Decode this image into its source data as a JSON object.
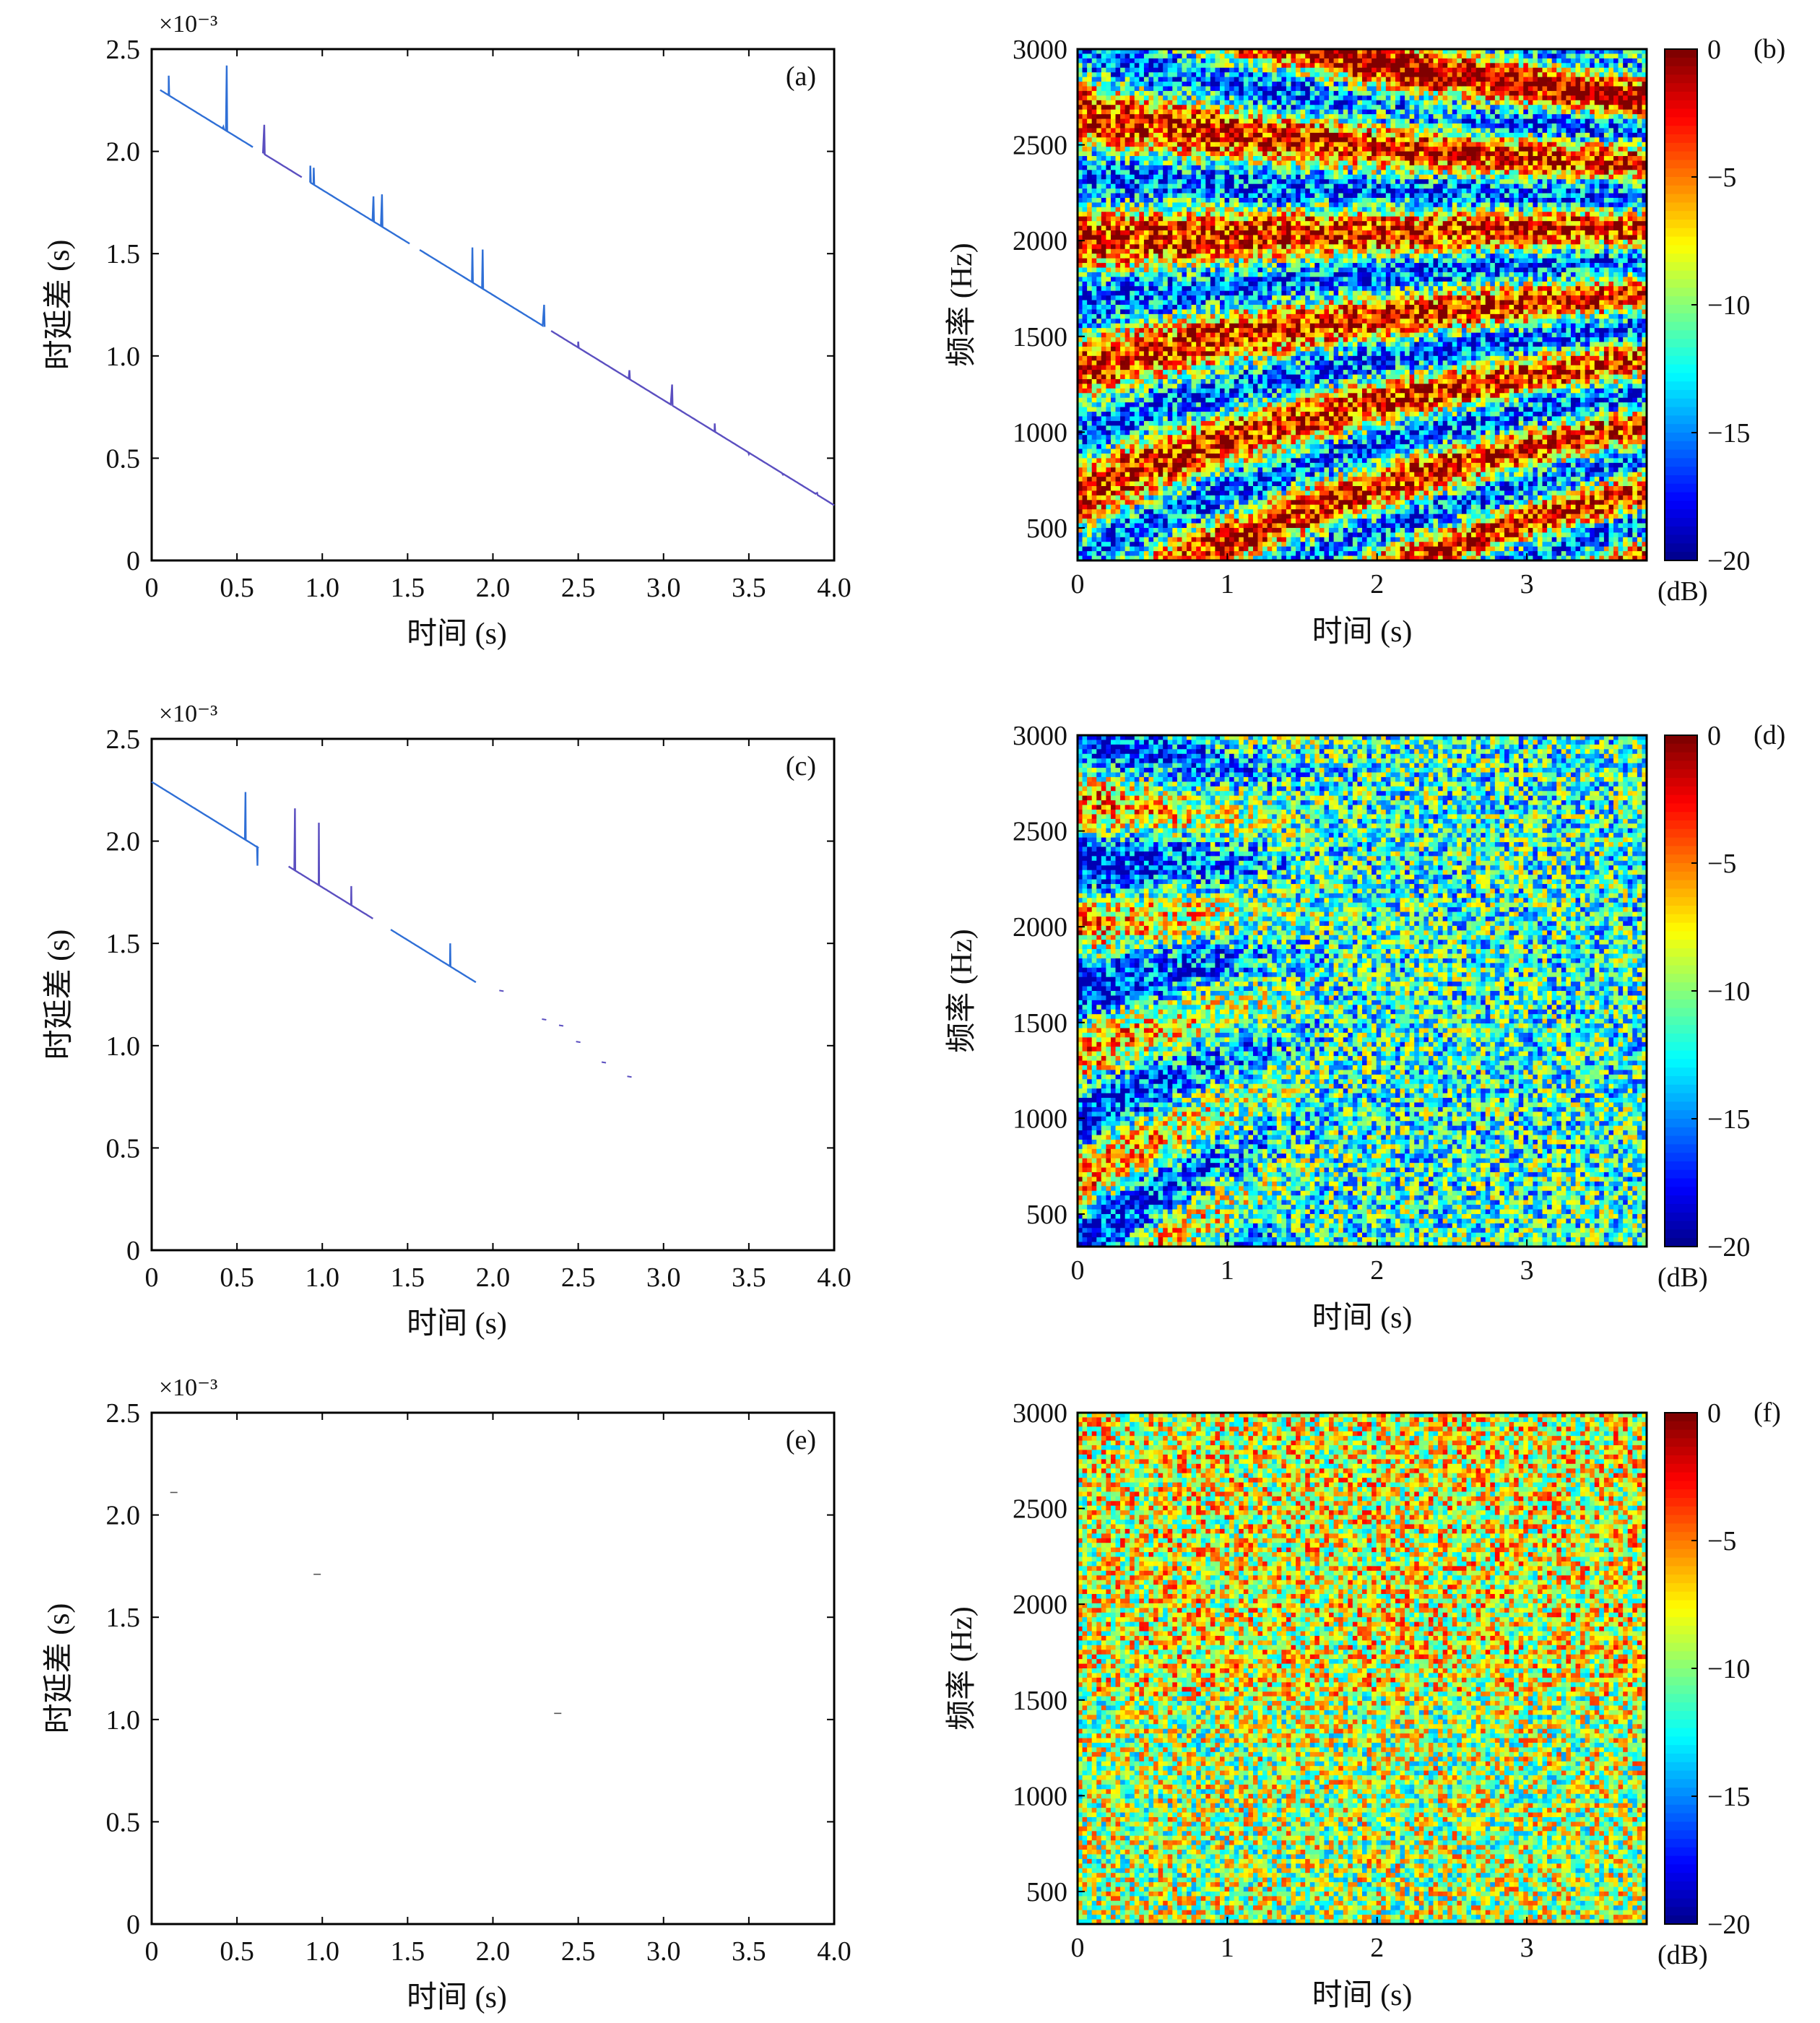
{
  "figure": {
    "colors": {
      "axis": "#000000",
      "line": "#2f6fd6",
      "line_alt": "#5b4fc0",
      "background": "#ffffff"
    }
  },
  "chart_data": [
    {
      "id": "a",
      "panel_label": "(a)",
      "type": "line",
      "xlabel": "时间 (s)",
      "ylabel": "时延差 (s)",
      "exponent": "×10⁻³",
      "xlim": [
        0,
        4.0
      ],
      "ylim": [
        0,
        2.5
      ],
      "xticks": [
        "0",
        "0.5",
        "1.0",
        "1.5",
        "2.0",
        "2.5",
        "3.0",
        "3.5",
        "4.0"
      ],
      "yticks": [
        "0",
        "0.5",
        "1.0",
        "1.5",
        "2.0",
        "2.5"
      ],
      "trend": {
        "x": [
          0.05,
          4.0
        ],
        "y": [
          2.3,
          0.27
        ]
      },
      "spikes": [
        {
          "x": 0.1,
          "y": 2.37
        },
        {
          "x": 0.42,
          "y": 2.12
        },
        {
          "x": 0.44,
          "y": 2.42
        },
        {
          "x": 0.66,
          "y": 2.13
        },
        {
          "x": 0.93,
          "y": 1.93
        },
        {
          "x": 0.95,
          "y": 1.92
        },
        {
          "x": 1.3,
          "y": 1.78
        },
        {
          "x": 1.35,
          "y": 1.79
        },
        {
          "x": 1.56,
          "y": 1.75
        },
        {
          "x": 1.88,
          "y": 1.53
        },
        {
          "x": 1.94,
          "y": 1.52
        },
        {
          "x": 2.3,
          "y": 1.25
        },
        {
          "x": 2.5,
          "y": 1.07
        },
        {
          "x": 2.8,
          "y": 0.93
        },
        {
          "x": 3.05,
          "y": 0.86
        },
        {
          "x": 3.3,
          "y": 0.67
        },
        {
          "x": 3.5,
          "y": 0.52
        },
        {
          "x": 3.7,
          "y": 0.42
        },
        {
          "x": 3.9,
          "y": 0.33
        }
      ],
      "gaps": [
        [
          0.6,
          0.65
        ],
        [
          0.88,
          0.92
        ],
        [
          1.52,
          1.57
        ],
        [
          2.3,
          2.34
        ]
      ]
    },
    {
      "id": "b",
      "panel_label": "(b)",
      "type": "heatmap",
      "xlabel": "时间 (s)",
      "ylabel": "频率 (Hz)",
      "xlim": [
        0,
        3.8
      ],
      "ylim": [
        330,
        3000
      ],
      "xticks": [
        "0",
        "1",
        "2",
        "3"
      ],
      "yticks": [
        "500",
        "1000",
        "1500",
        "2000",
        "2500",
        "3000"
      ],
      "colorbar": {
        "ticks": [
          "0",
          "−5",
          "−10",
          "−15",
          "−20"
        ],
        "unit": "(dB)",
        "range": [
          -20,
          0
        ]
      },
      "pattern": "striations-strong"
    },
    {
      "id": "c",
      "panel_label": "(c)",
      "type": "line",
      "xlabel": "时间 (s)",
      "ylabel": "时延差 (s)",
      "exponent": "×10⁻³",
      "xlim": [
        0,
        4.0
      ],
      "ylim": [
        0,
        2.5
      ],
      "xticks": [
        "0",
        "0.5",
        "1.0",
        "1.5",
        "2.0",
        "2.5",
        "3.0",
        "3.5",
        "4.0"
      ],
      "yticks": [
        "0",
        "0.5",
        "1.0",
        "1.5",
        "2.0",
        "2.5"
      ],
      "trend": {
        "x": [
          0.0,
          1.9
        ],
        "y": [
          2.29,
          1.31
        ]
      },
      "spikes": [
        {
          "x": 0.55,
          "y": 2.24
        },
        {
          "x": 0.62,
          "y": 1.88
        },
        {
          "x": 0.84,
          "y": 2.16
        },
        {
          "x": 0.98,
          "y": 2.09
        },
        {
          "x": 1.17,
          "y": 1.78
        },
        {
          "x": 1.75,
          "y": 1.5
        }
      ],
      "gaps": [
        [
          0.63,
          0.8
        ],
        [
          1.3,
          1.4
        ]
      ],
      "dots": [
        {
          "x": 2.05,
          "y": 1.27
        },
        {
          "x": 2.3,
          "y": 1.13
        },
        {
          "x": 2.4,
          "y": 1.1
        },
        {
          "x": 2.5,
          "y": 1.02
        },
        {
          "x": 2.65,
          "y": 0.92
        },
        {
          "x": 2.8,
          "y": 0.85
        }
      ]
    },
    {
      "id": "d",
      "panel_label": "(d)",
      "type": "heatmap",
      "xlabel": "时间 (s)",
      "ylabel": "频率 (Hz)",
      "xlim": [
        0,
        3.8
      ],
      "ylim": [
        330,
        3000
      ],
      "xticks": [
        "0",
        "1",
        "2",
        "3"
      ],
      "yticks": [
        "500",
        "1000",
        "1500",
        "2000",
        "2500",
        "3000"
      ],
      "colorbar": {
        "ticks": [
          "0",
          "−5",
          "−10",
          "−15",
          "−20"
        ],
        "unit": "(dB)",
        "range": [
          -20,
          0
        ]
      },
      "pattern": "striations-weak"
    },
    {
      "id": "e",
      "panel_label": "(e)",
      "type": "line",
      "xlabel": "时间 (s)",
      "ylabel": "时延差 (s)",
      "exponent": "×10⁻³",
      "xlim": [
        0,
        4.0
      ],
      "ylim": [
        0,
        2.5
      ],
      "xticks": [
        "0",
        "0.5",
        "1.0",
        "1.5",
        "2.0",
        "2.5",
        "3.0",
        "3.5",
        "4.0"
      ],
      "yticks": [
        "0",
        "0.5",
        "1.0",
        "1.5",
        "2.0",
        "2.5"
      ],
      "dashes": [
        {
          "x": 0.13,
          "y": 2.11
        },
        {
          "x": 0.97,
          "y": 1.71
        },
        {
          "x": 2.38,
          "y": 1.03
        }
      ]
    },
    {
      "id": "f",
      "panel_label": "(f)",
      "type": "heatmap",
      "xlabel": "时间 (s)",
      "ylabel": "频率 (Hz)",
      "xlim": [
        0,
        3.8
      ],
      "ylim": [
        330,
        3000
      ],
      "xticks": [
        "0",
        "1",
        "2",
        "3"
      ],
      "yticks": [
        "500",
        "1000",
        "1500",
        "2000",
        "2500",
        "3000"
      ],
      "colorbar": {
        "ticks": [
          "0",
          "−5",
          "−10",
          "−15",
          "−20"
        ],
        "unit": "(dB)",
        "range": [
          -20,
          0
        ]
      },
      "pattern": "noise"
    }
  ]
}
